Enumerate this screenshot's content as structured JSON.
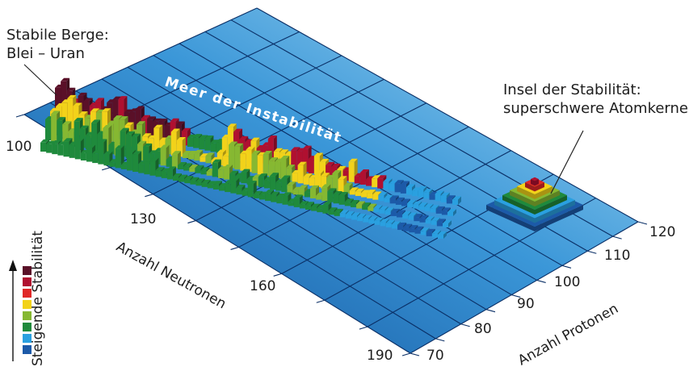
{
  "callouts": {
    "stable_mountains_line1": "Stabile Berge:",
    "stable_mountains_line2": "Blei – Uran",
    "island_line1": "Insel der Stabilität:",
    "island_line2": "superschwere Atomkerne"
  },
  "sea_label": "Meer der Instabilität",
  "axes": {
    "neutrons": {
      "title": "Anzahl Neutronen",
      "ticks": [
        "100",
        "130",
        "160",
        "190"
      ]
    },
    "protons": {
      "title": "Anzahl Protonen",
      "ticks": [
        "70",
        "80",
        "90",
        "100",
        "110",
        "120"
      ]
    }
  },
  "legend": {
    "title": "Steigende Stabilität",
    "colors": [
      "#5a1028",
      "#b01030",
      "#e02828",
      "#f2d21a",
      "#86b832",
      "#1f8a3c",
      "#2aa0e0",
      "#1c5aa8"
    ]
  },
  "colors": {
    "plane_dark": "#0f4f9a",
    "plane_light": "#a8dcf5",
    "grid": "#0a2f66"
  }
}
